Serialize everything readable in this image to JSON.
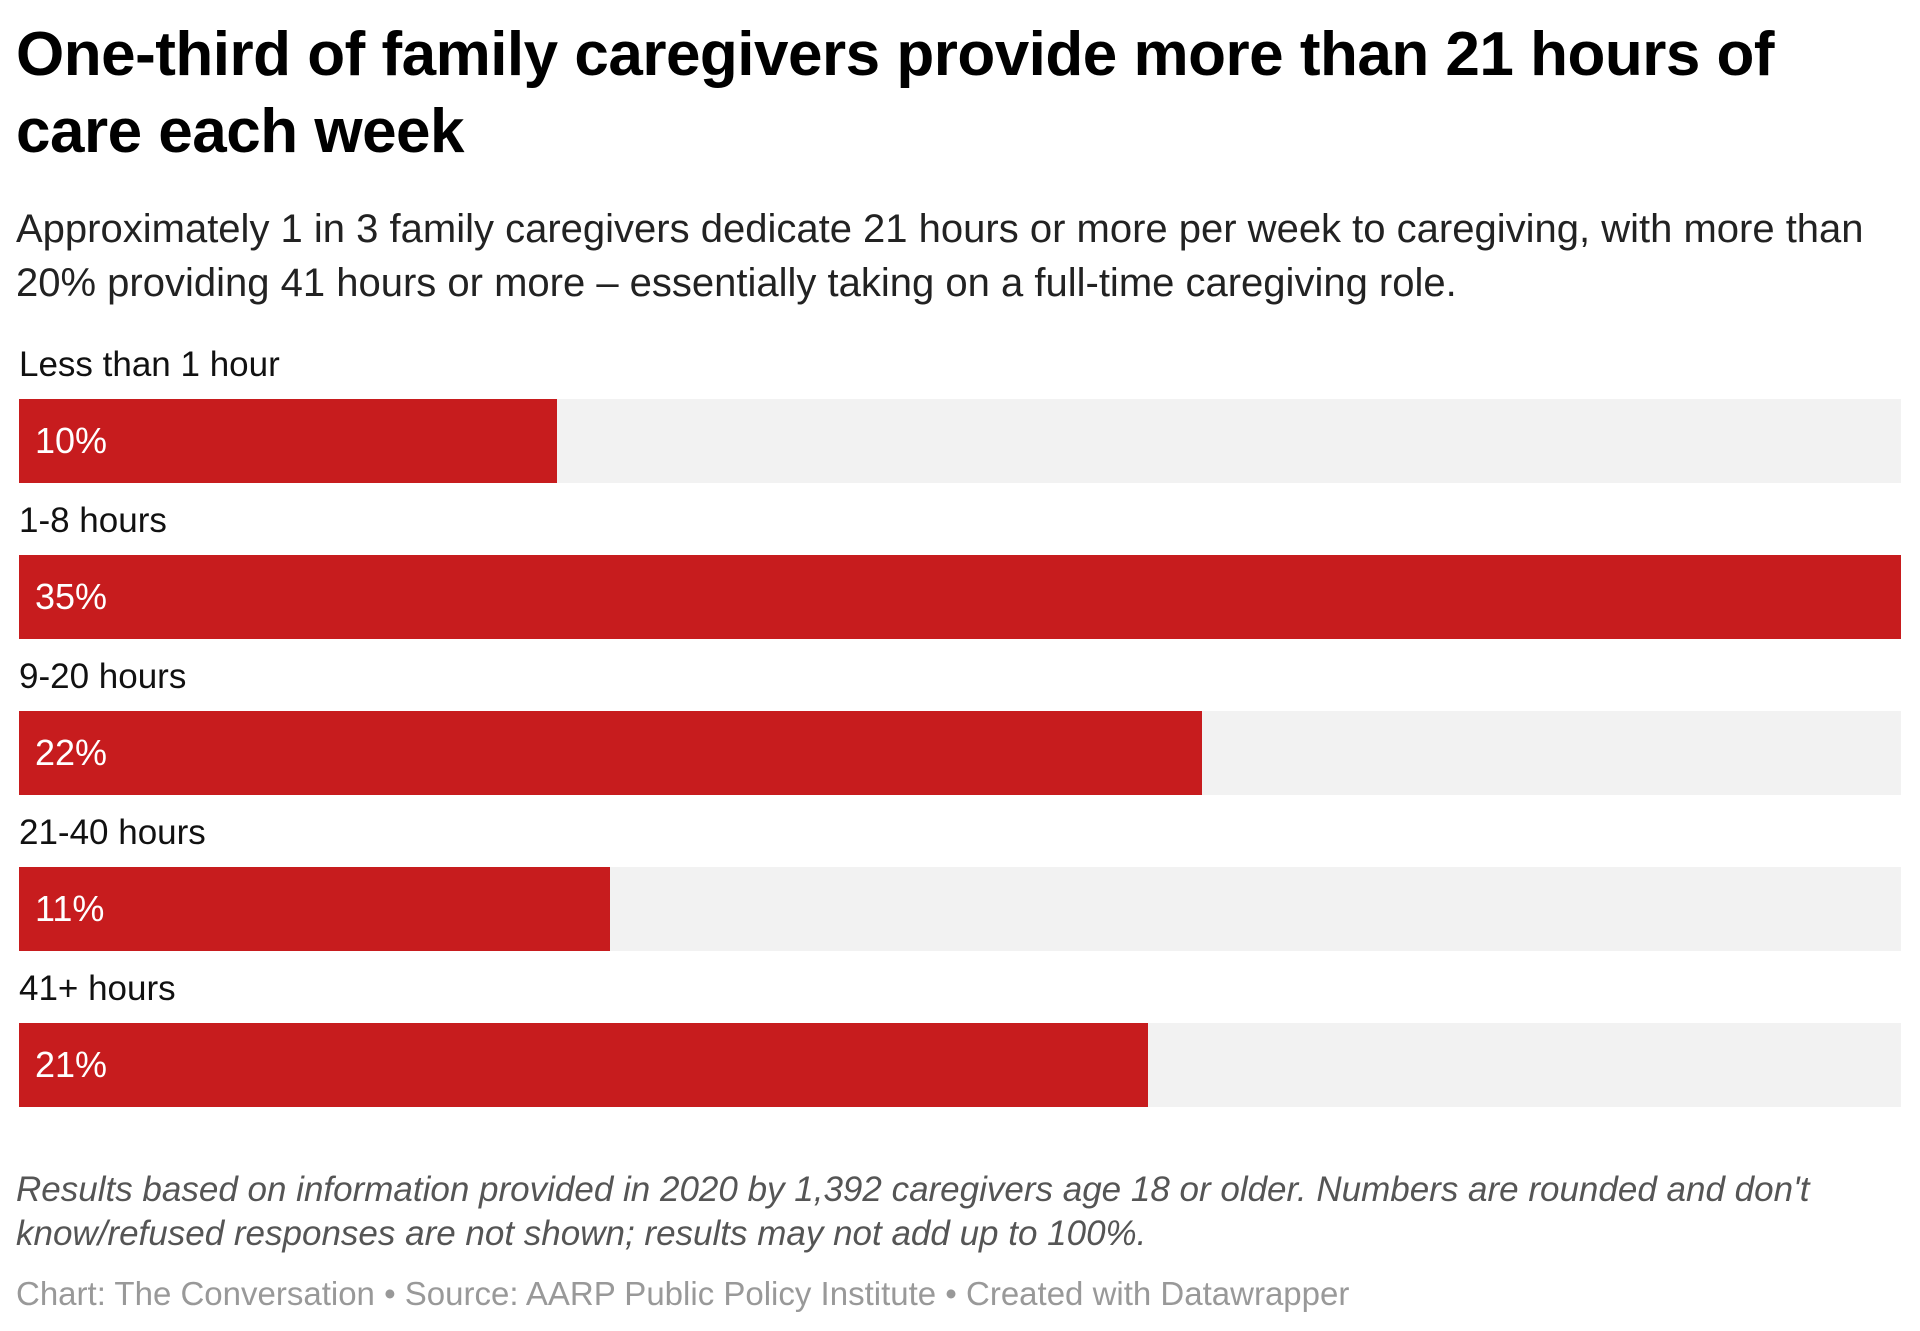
{
  "chart_data": {
    "type": "bar",
    "orientation": "horizontal",
    "title": "One-third of family caregivers provide more than 21 hours of care each week",
    "subtitle": "Approximately 1 in 3 family caregivers dedicate 21 hours or more per week to caregiving, with more than 20% providing 41 hours or more – essentially taking on a full-time caregiving role.",
    "categories": [
      "Less than 1 hour",
      "1-8 hours",
      "9-20 hours",
      "21-40 hours",
      "41+ hours"
    ],
    "values": [
      10,
      35,
      22,
      11,
      21
    ],
    "value_labels": [
      "10%",
      "35%",
      "22%",
      "11%",
      "21%"
    ],
    "unit": "%",
    "xlim": [
      0,
      35
    ],
    "grid": false,
    "colors": {
      "bar": "#c71c1e",
      "track": "#f2f2f2"
    },
    "notes": "Results based on information provided in 2020 by 1,392 caregivers age 18 or older. Numbers are rounded and don't know/refused responses are not shown; results may not add up to 100%.",
    "credit": "Chart: The Conversation • Source: AARP Public Policy Institute • Created with Datawrapper"
  }
}
